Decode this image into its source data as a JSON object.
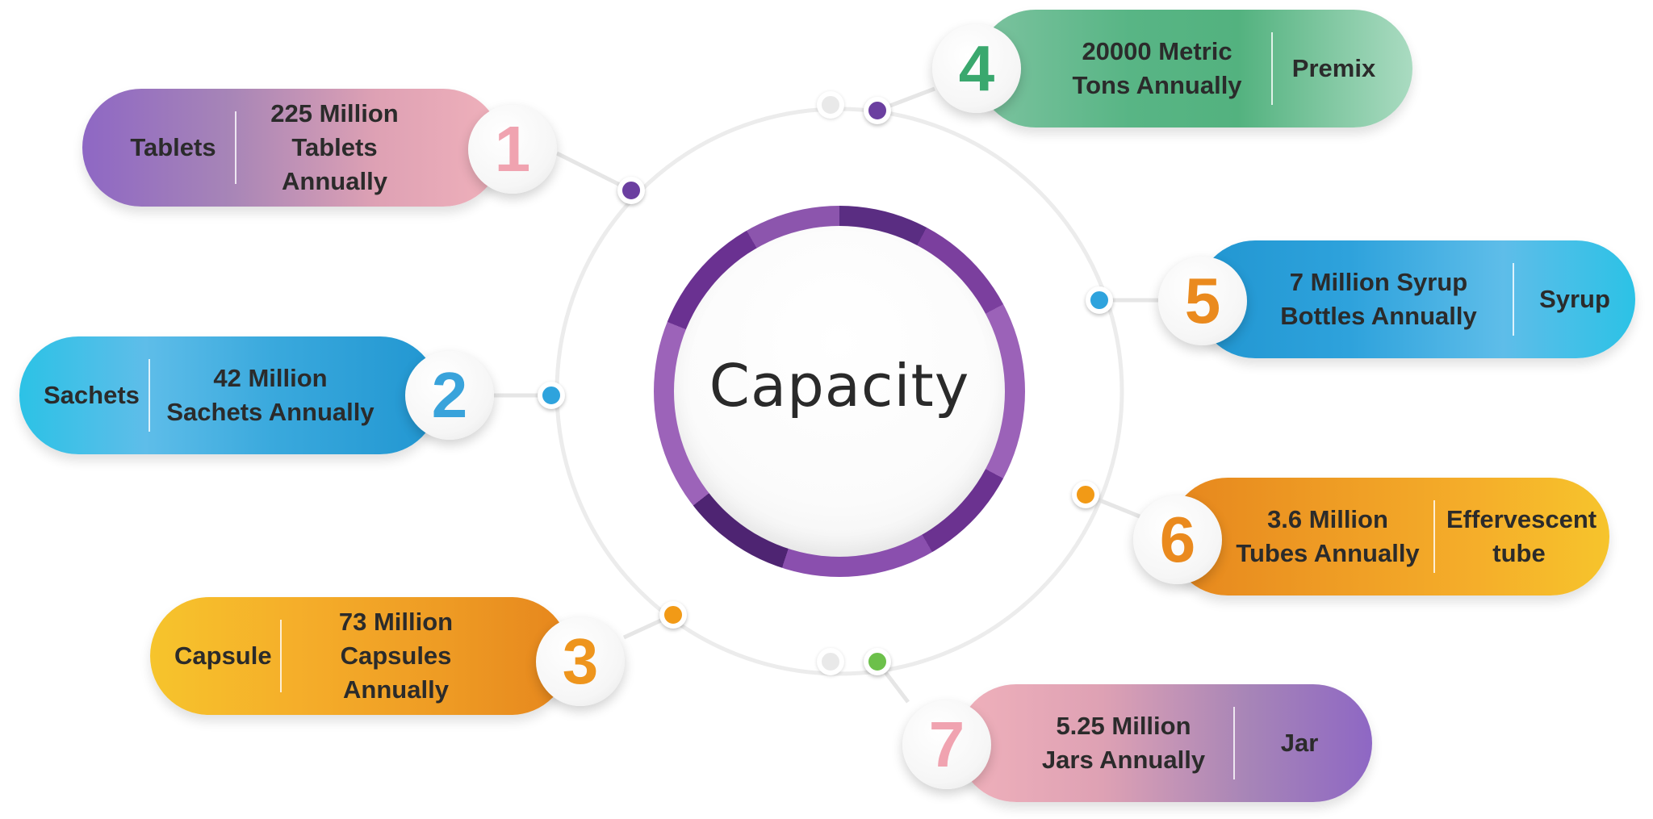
{
  "title": "Capacity",
  "items": [
    {
      "number": "1",
      "label": "Tablets",
      "value_line1": "225 Million",
      "value_line2": "Tablets Annually",
      "accent": "#8e67c4"
    },
    {
      "number": "2",
      "label": "Sachets",
      "value_line1": "42 Million",
      "value_line2": "Sachets Annually",
      "accent": "#2ea3dd"
    },
    {
      "number": "3",
      "label": "Capsule",
      "value_line1": "73 Million",
      "value_line2": "Capsules Annually",
      "accent": "#ee951d"
    },
    {
      "number": "4",
      "label": "Premix",
      "value_line1": "20000 Metric",
      "value_line2": "Tons Annually",
      "accent": "#3aa86e"
    },
    {
      "number": "5",
      "label": "Syrup",
      "value_line1": "7 Million Syrup",
      "value_line2": "Bottles Annually",
      "accent": "#2ea3dd"
    },
    {
      "number": "6",
      "label_line1": "Effervescent",
      "label_line2": "tube",
      "value_line1": "3.6 Million",
      "value_line2": "Tubes Annually",
      "accent": "#ee951d"
    },
    {
      "number": "7",
      "label": "Jar",
      "value_line1": "5.25 Million",
      "value_line2": "Jars Annually",
      "accent": "#8e67c4"
    }
  ]
}
